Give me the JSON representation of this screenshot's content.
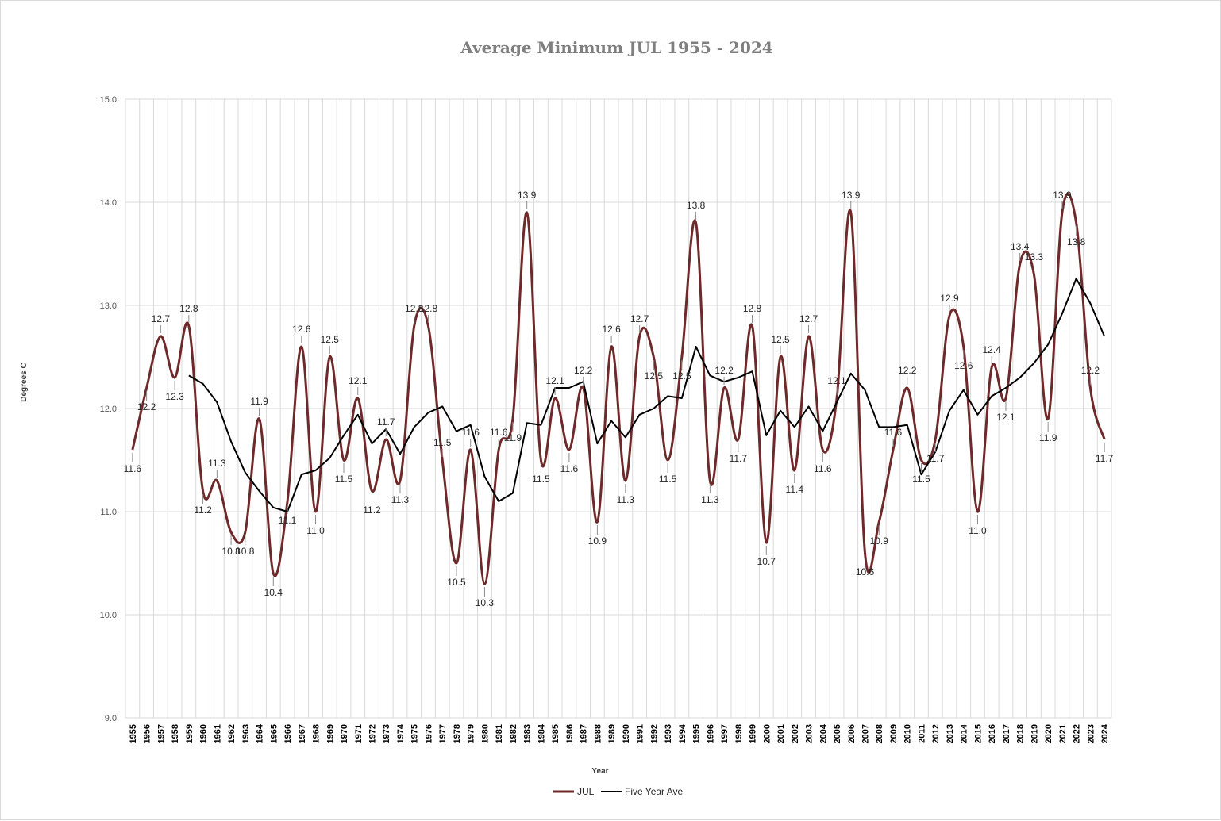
{
  "chart_data": {
    "type": "line",
    "title": "Average Minimum JUL 1955 - 2024",
    "xlabel": "Year",
    "ylabel": "Degrees C",
    "ylim": [
      9.0,
      15.0
    ],
    "yticks": [
      "9.0",
      "10.0",
      "11.0",
      "12.0",
      "13.0",
      "14.0",
      "15.0"
    ],
    "grid": "vertical per year and horizontal at each degree",
    "legend_position": "bottom",
    "categories": [
      "1955",
      "1956",
      "1957",
      "1958",
      "1959",
      "1960",
      "1961",
      "1962",
      "1963",
      "1964",
      "1965",
      "1966",
      "1967",
      "1968",
      "1969",
      "1970",
      "1971",
      "1972",
      "1973",
      "1974",
      "1975",
      "1976",
      "1977",
      "1978",
      "1979",
      "1980",
      "1981",
      "1982",
      "1983",
      "1984",
      "1985",
      "1986",
      "1987",
      "1988",
      "1989",
      "1990",
      "1991",
      "1992",
      "1993",
      "1994",
      "1995",
      "1996",
      "1997",
      "1998",
      "1999",
      "2000",
      "2001",
      "2002",
      "2003",
      "2004",
      "2005",
      "2006",
      "2007",
      "2008",
      "2009",
      "2010",
      "2011",
      "2012",
      "2013",
      "2014",
      "2015",
      "2016",
      "2017",
      "2018",
      "2019",
      "2020",
      "2021",
      "2022",
      "2023",
      "2024"
    ],
    "series": [
      {
        "name": "JUL",
        "color": "#6e2a2a",
        "smooth": true,
        "values": [
          11.6,
          12.2,
          12.7,
          12.3,
          12.8,
          11.2,
          11.3,
          10.8,
          10.8,
          11.9,
          10.4,
          11.1,
          12.6,
          11.0,
          12.5,
          11.5,
          12.1,
          11.2,
          11.7,
          11.3,
          12.8,
          12.8,
          11.5,
          10.5,
          11.6,
          10.3,
          11.6,
          11.9,
          13.9,
          11.5,
          12.1,
          11.6,
          12.2,
          10.9,
          12.6,
          11.3,
          12.7,
          12.5,
          11.5,
          12.5,
          13.8,
          11.3,
          12.2,
          11.7,
          12.8,
          10.7,
          12.5,
          11.4,
          12.7,
          11.6,
          12.1,
          13.9,
          10.6,
          10.9,
          11.6,
          12.2,
          11.5,
          11.7,
          12.9,
          12.6,
          11.0,
          12.4,
          12.1,
          13.4,
          13.3,
          11.9,
          13.9,
          13.8,
          12.2,
          11.7
        ]
      },
      {
        "name": "Five Year Ave",
        "color": "#000000",
        "smooth": false,
        "values": [
          null,
          null,
          null,
          null,
          12.32,
          12.24,
          12.06,
          11.68,
          11.38,
          11.2,
          11.04,
          11.0,
          11.36,
          11.4,
          11.52,
          11.74,
          11.94,
          11.66,
          11.8,
          11.56,
          11.82,
          11.96,
          12.02,
          11.78,
          11.84,
          11.34,
          11.1,
          11.18,
          11.86,
          11.84,
          12.2,
          12.2,
          12.26,
          11.66,
          11.88,
          11.72,
          11.94,
          12.0,
          12.12,
          12.1,
          12.6,
          12.32,
          12.26,
          12.3,
          12.36,
          11.74,
          11.98,
          11.82,
          12.02,
          11.78,
          12.06,
          12.34,
          12.18,
          11.82,
          11.82,
          11.84,
          11.36,
          11.58,
          11.98,
          12.18,
          11.94,
          12.12,
          12.2,
          12.3,
          12.44,
          12.62,
          12.92,
          13.26,
          13.02,
          12.7
        ]
      }
    ]
  }
}
